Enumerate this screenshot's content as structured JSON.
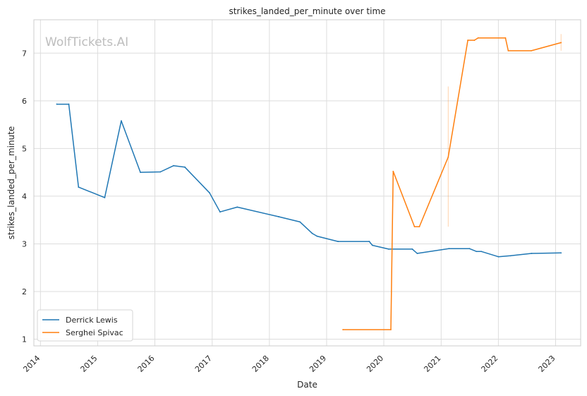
{
  "chart_data": {
    "type": "line",
    "title": "strikes_landed_per_minute over time",
    "xlabel": "Date",
    "ylabel": "strikes_landed_per_minute",
    "watermark": "WolfTickets.AI",
    "x_tick_labels": [
      "2014",
      "2015",
      "2016",
      "2017",
      "2018",
      "2019",
      "2020",
      "2021",
      "2022",
      "2023"
    ],
    "y_tick_labels": [
      "1",
      "2",
      "3",
      "4",
      "5",
      "6",
      "7"
    ],
    "xlim": [
      "2013-11-20",
      "2023-06-10"
    ],
    "ylim": [
      0.86,
      7.7
    ],
    "grid": true,
    "legend_position": "lower-left",
    "series": [
      {
        "name": "Derrick Lewis",
        "color": "#1f77b4",
        "points": [
          [
            "2014-04-15",
            5.93
          ],
          [
            "2014-07-01",
            5.93
          ],
          [
            "2014-09-01",
            4.19
          ],
          [
            "2015-02-15",
            3.97
          ],
          [
            "2015-06-01",
            5.58
          ],
          [
            "2015-10-01",
            4.5
          ],
          [
            "2016-02-05",
            4.51
          ],
          [
            "2016-04-30",
            4.64
          ],
          [
            "2016-07-10",
            4.61
          ],
          [
            "2016-12-15",
            4.07
          ],
          [
            "2017-02-20",
            3.67
          ],
          [
            "2017-06-10",
            3.77
          ],
          [
            "2018-03-01",
            3.57
          ],
          [
            "2018-07-15",
            3.46
          ],
          [
            "2018-10-01",
            3.22
          ],
          [
            "2018-11-01",
            3.16
          ],
          [
            "2019-03-15",
            3.05
          ],
          [
            "2019-09-30",
            3.05
          ],
          [
            "2019-10-20",
            2.97
          ],
          [
            "2020-02-01",
            2.89
          ],
          [
            "2020-07-01",
            2.89
          ],
          [
            "2020-08-01",
            2.8
          ],
          [
            "2021-02-20",
            2.9
          ],
          [
            "2021-06-30",
            2.9
          ],
          [
            "2021-08-15",
            2.84
          ],
          [
            "2021-09-15",
            2.84
          ],
          [
            "2022-01-01",
            2.73
          ],
          [
            "2022-03-20",
            2.75
          ],
          [
            "2022-08-01",
            2.8
          ],
          [
            "2023-02-05",
            2.81
          ]
        ]
      },
      {
        "name": "Serghei Spivac",
        "color": "#ff7f0e",
        "points": [
          [
            "2019-04-15",
            1.2
          ],
          [
            "2020-02-15",
            1.2
          ],
          [
            "2020-03-01",
            4.52
          ],
          [
            "2020-07-15",
            3.36
          ],
          [
            "2020-08-15",
            3.36
          ],
          [
            "2021-02-15",
            4.82
          ],
          [
            "2021-06-20",
            7.27
          ],
          [
            "2021-08-01",
            7.27
          ],
          [
            "2021-08-25",
            7.32
          ],
          [
            "2022-02-15",
            7.32
          ],
          [
            "2022-03-05",
            7.05
          ],
          [
            "2022-07-30",
            7.05
          ],
          [
            "2023-02-05",
            7.22
          ]
        ],
        "error_bars": [
          {
            "x": "2021-02-15",
            "low": 3.36,
            "high": 6.3
          },
          {
            "x": "2023-02-05",
            "low": 7.05,
            "high": 7.4
          }
        ]
      }
    ]
  }
}
